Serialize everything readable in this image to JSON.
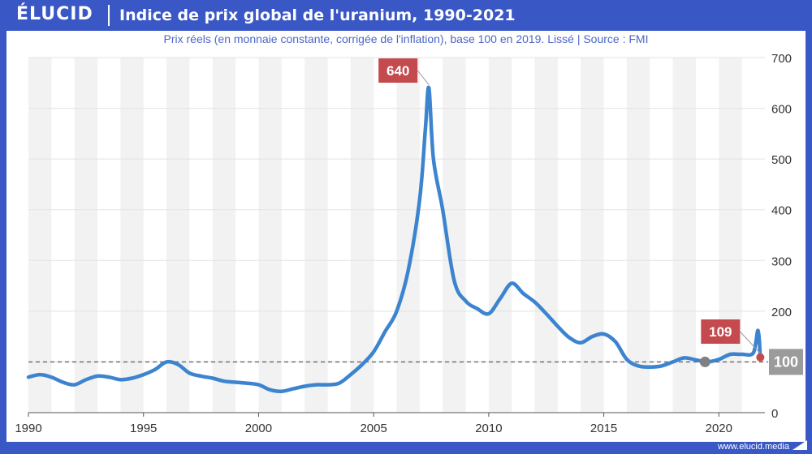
{
  "brand": {
    "name": "ÉLUCID"
  },
  "footer": {
    "site": "www.elucid.media"
  },
  "colors": {
    "header": "#3a57c6",
    "line": "#3c84cf",
    "callout": "#c44a4e",
    "baseline_label": "#9b9b9b",
    "band": "#f2f2f2"
  },
  "chart_data": {
    "type": "line",
    "title": "Indice de prix global de l'uranium, 1990-2021",
    "subtitle": "Prix réels (en monnaie constante, corrigée de l'inflation), base 100 en 2019. Lissé  |  Source : FMI",
    "xlabel": "",
    "ylabel": "",
    "xlim": [
      1990,
      2022
    ],
    "ylim": [
      0,
      700
    ],
    "x_ticks": [
      1990,
      1995,
      2000,
      2005,
      2010,
      2015,
      2020
    ],
    "y_ticks": [
      0,
      100,
      200,
      300,
      400,
      500,
      600,
      700
    ],
    "series": [
      {
        "name": "Indice de prix de l'uranium",
        "x": [
          1990.0,
          1990.5,
          1991.0,
          1991.5,
          1992.0,
          1992.5,
          1993.0,
          1993.5,
          1994.0,
          1994.5,
          1995.0,
          1995.5,
          1996.0,
          1996.5,
          1997.0,
          1997.5,
          1998.0,
          1998.5,
          1999.0,
          1999.5,
          2000.0,
          2000.5,
          2001.0,
          2001.5,
          2002.0,
          2002.5,
          2003.0,
          2003.5,
          2004.0,
          2004.5,
          2005.0,
          2005.5,
          2006.0,
          2006.5,
          2007.0,
          2007.25,
          2007.4,
          2007.6,
          2008.0,
          2008.5,
          2009.0,
          2009.5,
          2010.0,
          2010.5,
          2011.0,
          2011.5,
          2012.0,
          2012.5,
          2013.0,
          2013.5,
          2014.0,
          2014.5,
          2015.0,
          2015.5,
          2016.0,
          2016.5,
          2017.0,
          2017.5,
          2018.0,
          2018.5,
          2019.0,
          2019.5,
          2020.0,
          2020.5,
          2021.0,
          2021.5,
          2021.7,
          2021.8
        ],
        "values": [
          70,
          75,
          70,
          60,
          55,
          65,
          72,
          70,
          65,
          68,
          75,
          85,
          100,
          95,
          78,
          72,
          68,
          62,
          60,
          58,
          55,
          45,
          42,
          47,
          52,
          55,
          55,
          58,
          75,
          95,
          120,
          160,
          200,
          280,
          420,
          560,
          640,
          500,
          400,
          260,
          220,
          205,
          195,
          225,
          255,
          235,
          218,
          195,
          170,
          148,
          138,
          150,
          155,
          140,
          105,
          92,
          90,
          92,
          100,
          108,
          104,
          100,
          105,
          115,
          115,
          118,
          162,
          109
        ]
      }
    ],
    "baseline": {
      "value": 100,
      "label": "100"
    },
    "annotations": [
      {
        "label": "640",
        "x": 2007.4,
        "value": 640
      },
      {
        "label": "109",
        "x": 2021.8,
        "value": 109
      }
    ],
    "markers": [
      {
        "name": "base-2019",
        "x": 2019.4,
        "value": 100
      },
      {
        "name": "latest-2021",
        "x": 2021.8,
        "value": 109
      }
    ]
  }
}
